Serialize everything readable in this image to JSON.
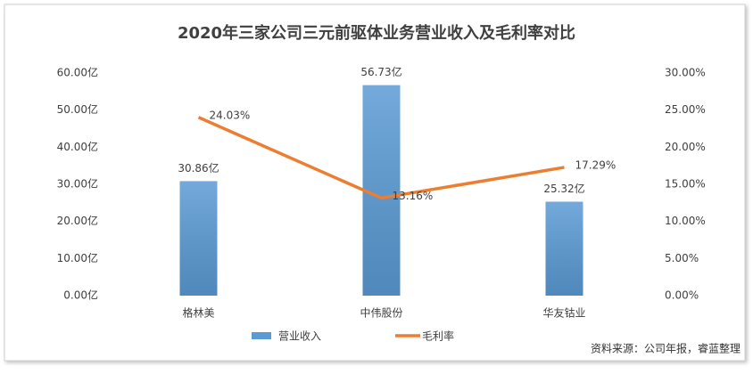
{
  "chart_data": {
    "type": "bar",
    "title": "2020年三家公司三元前驱体业务营业收入及毛利率对比",
    "categories": [
      "格林美",
      "中伟股份",
      "华友钴业"
    ],
    "series": [
      {
        "name": "营业收入",
        "type": "bar",
        "color": "#5b9bd5",
        "values": [
          30.86,
          56.73,
          25.32
        ],
        "value_labels": [
          "30.86亿",
          "56.73亿",
          "25.32亿"
        ]
      },
      {
        "name": "毛利率",
        "type": "line",
        "axis": "y2",
        "color": "#ed7d31",
        "values": [
          24.03,
          13.16,
          17.29
        ],
        "value_labels": [
          "24.03%",
          "13.16%",
          "17.29%"
        ]
      }
    ],
    "ylim": [
      0,
      60
    ],
    "yticks": [
      {
        "value": 0,
        "label": "0.00亿"
      },
      {
        "value": 10,
        "label": "10.00亿"
      },
      {
        "value": 20,
        "label": "20.00亿"
      },
      {
        "value": 30,
        "label": "30.00亿"
      },
      {
        "value": 40,
        "label": "40.00亿"
      },
      {
        "value": 50,
        "label": "50.00亿"
      },
      {
        "value": 60,
        "label": "60.00亿"
      }
    ],
    "y2lim": [
      0,
      30
    ],
    "y2ticks": [
      {
        "value": 0,
        "label": "0.00%"
      },
      {
        "value": 5,
        "label": "5.00%"
      },
      {
        "value": 10,
        "label": "10.00%"
      },
      {
        "value": 15,
        "label": "15.00%"
      },
      {
        "value": 20,
        "label": "20.00%"
      },
      {
        "value": 25,
        "label": "25.00%"
      },
      {
        "value": 30,
        "label": "30.00%"
      }
    ],
    "grid": false,
    "legend": "bottom",
    "source": "资料来源：公司年报，睿蓝整理"
  }
}
